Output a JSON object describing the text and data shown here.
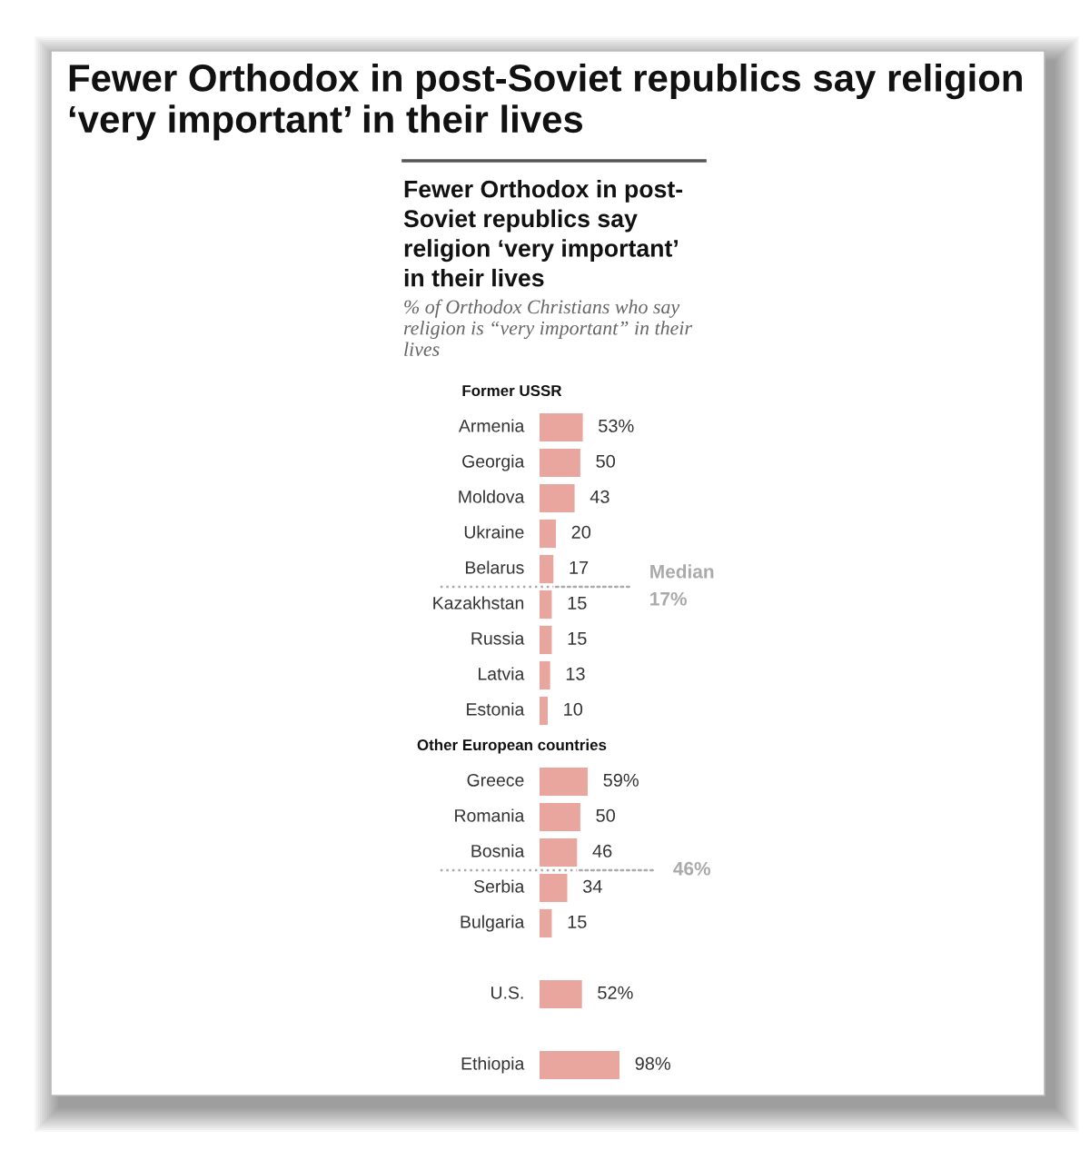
{
  "chart_data": {
    "type": "bar",
    "orientation": "horizontal",
    "title": "Fewer Orthodox in post-Soviet republics say religion\n‘very important’ in their lives",
    "subtitle": "% of Orthodox Christians who say\nreligion is “very important” in their\nlives",
    "categories": [
      "Former USSR",
      "Armenia",
      "Georgia",
      "Moldova",
      "Ukraine",
      "Belarus",
      "Kazakhstan",
      "Russia",
      "Latvia",
      "Estonia",
      "Other European countries",
      "Greece",
      "Romania",
      "Bosnia",
      "Serbia",
      "Bulgaria",
      null,
      "U.S.",
      null,
      "Ethiopia"
    ],
    "values": [
      null,
      53,
      50,
      43,
      20,
      17,
      15,
      15,
      13,
      10,
      null,
      59,
      50,
      46,
      34,
      15,
      null,
      52,
      null,
      98
    ],
    "value_labels": [
      null,
      "53%",
      "50",
      "43",
      "20",
      "17",
      "15",
      "15",
      "13",
      "10",
      null,
      "59%",
      "50",
      "46",
      "34",
      "15",
      null,
      "52%",
      null,
      "98%"
    ],
    "color": "#e9a69e",
    "annotations": [
      "Fewer Orthodox in post-\nSoviet republics say\nreligion ‘very important’\nin their lives",
      {
        "text": "Median\n17%",
        "x": 17,
        "y": "Belarus"
      },
      {
        "text": "46%",
        "x": 46,
        "y": "Bosnia"
      }
    ]
  }
}
